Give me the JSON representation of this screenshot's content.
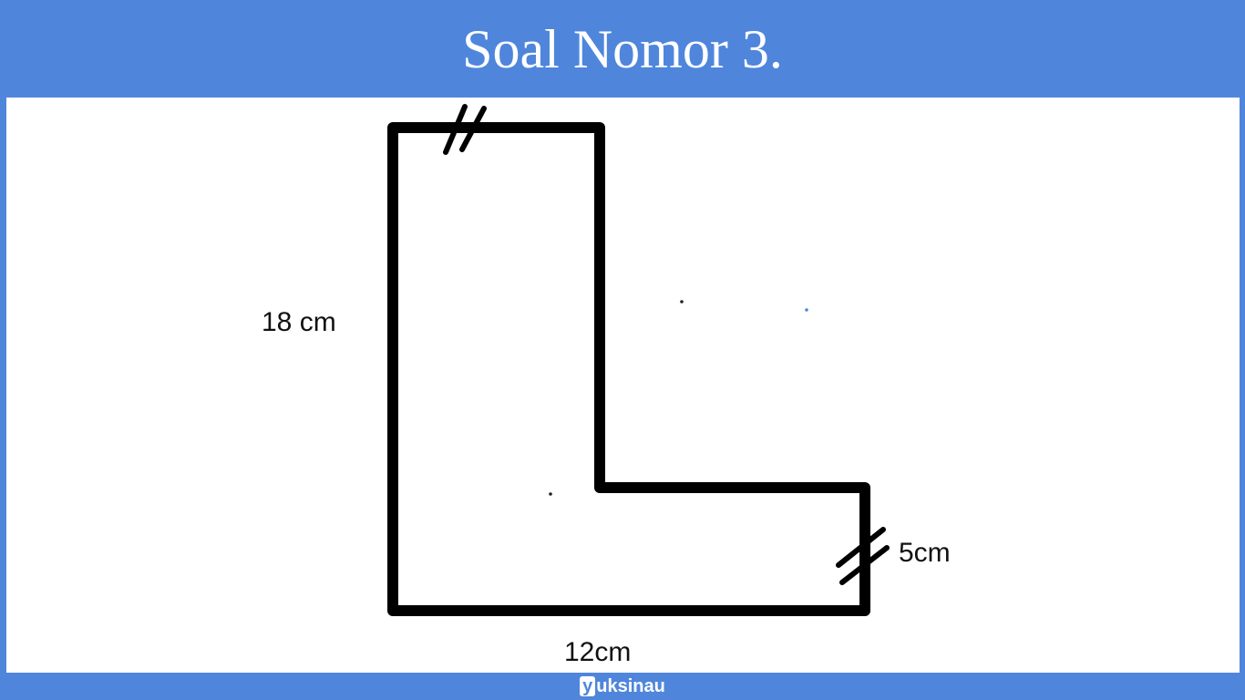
{
  "title": "Soal Nomor 3.",
  "diagram": {
    "labels": {
      "height": "18 cm",
      "width": "12cm",
      "thickness": "5cm"
    }
  },
  "footer": {
    "brand_initial": "y",
    "brand_rest": "uksinau"
  },
  "colors": {
    "background": "#4f86dc",
    "canvas": "#ffffff",
    "stroke": "#000000"
  }
}
